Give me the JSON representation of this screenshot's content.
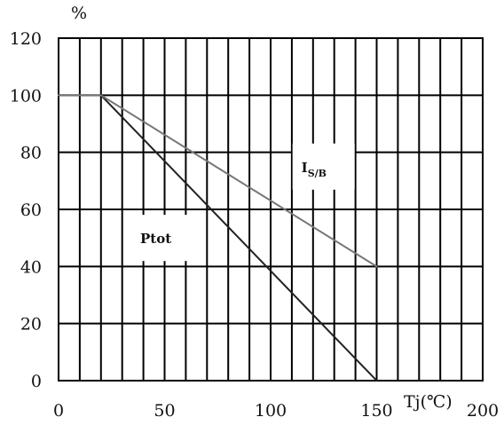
{
  "chart_data": {
    "type": "line",
    "title": "",
    "xlabel": "Tj(℃)",
    "ylabel": "%",
    "xlim": [
      0,
      200
    ],
    "ylim": [
      0,
      120
    ],
    "x_ticks": [
      0,
      50,
      100,
      150,
      200
    ],
    "y_ticks": [
      0,
      20,
      40,
      60,
      80,
      100,
      120
    ],
    "x_minor_step": 10,
    "y_minor_step": 20,
    "grid": true,
    "series": [
      {
        "name": "Ptot",
        "color": "#222222",
        "x": [
          0,
          20,
          150
        ],
        "y": [
          100,
          100,
          0
        ]
      },
      {
        "name": "IS/B",
        "color": "#777777",
        "x": [
          0,
          20,
          150
        ],
        "y": [
          100,
          100,
          40
        ]
      }
    ],
    "annotations": [
      {
        "series_index": 0,
        "text": "Ptot",
        "x": 36,
        "y": 50
      },
      {
        "series_index": 1,
        "text": "I",
        "subscript": "S/B",
        "x": 112,
        "y": 75
      }
    ]
  }
}
